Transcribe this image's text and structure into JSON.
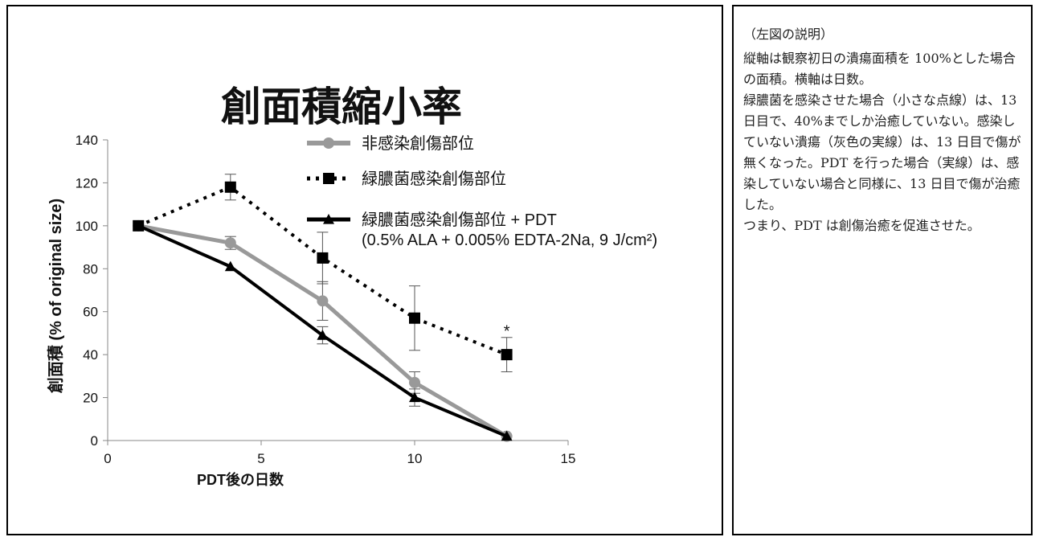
{
  "chart_data": {
    "type": "line",
    "title": "創面積縮小率",
    "xlabel": "PDT後の日数",
    "ylabel": "創面積 (% of original size)",
    "xlim": [
      0,
      15
    ],
    "ylim": [
      0,
      140
    ],
    "x_ticks": [
      0,
      5,
      10,
      15
    ],
    "y_ticks": [
      0,
      20,
      40,
      60,
      80,
      100,
      120,
      140
    ],
    "grid": false,
    "legend_position": "top-right",
    "annotations": [
      {
        "text": "*",
        "x": 13,
        "y": 53
      }
    ],
    "series": [
      {
        "name": "非感染創傷部位",
        "marker": "circle",
        "line": "solid",
        "color": "#999999",
        "x": [
          1,
          4,
          7,
          10,
          13
        ],
        "y": [
          100,
          92,
          65,
          27,
          2
        ],
        "error": [
          0,
          3,
          9,
          5,
          0
        ]
      },
      {
        "name": "緑膿菌感染創傷部位",
        "marker": "square",
        "line": "dotted",
        "color": "#000000",
        "x": [
          1,
          4,
          7,
          10,
          13
        ],
        "y": [
          100,
          118,
          85,
          57,
          40
        ],
        "error": [
          0,
          6,
          12,
          15,
          8
        ]
      },
      {
        "name": "緑膿菌感染創傷部位 + PDT",
        "name_line2": "(0.5% ALA + 0.005% EDTA-2Na, 9 J/cm²)",
        "marker": "triangle",
        "line": "solid",
        "color": "#000000",
        "x": [
          1,
          4,
          7,
          10,
          13
        ],
        "y": [
          100,
          81,
          49,
          20,
          2
        ],
        "error": [
          0,
          0,
          4,
          4,
          0
        ]
      }
    ]
  },
  "description": {
    "heading": "（左図の説明）",
    "paragraphs": [
      "縦軸は観察初日の潰瘍面積を 100%とした場合の面積。横軸は日数。",
      "緑膿菌を感染させた場合（小さな点線）は、13 日目で、40%までしか治癒していない。感染していない潰瘍（灰色の実線）は、13 日目で傷が無くなった。PDT を行った場合（実線）は、感染していない場合と同様に、13 日目で傷が治癒した。",
      "つまり、PDT は創傷治癒を促進させた。"
    ]
  }
}
